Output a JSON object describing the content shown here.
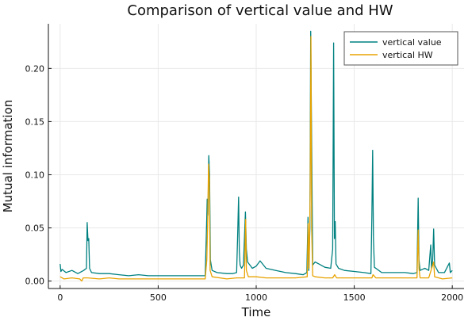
{
  "chart_data": {
    "type": "line",
    "title": "Comparison of vertical value and HW",
    "xlabel": "Time",
    "ylabel": "Mutual information",
    "xlim": [
      -60,
      2060
    ],
    "ylim": [
      -0.007,
      0.242
    ],
    "x_ticks": [
      0,
      500,
      1000,
      1500,
      2000
    ],
    "x_tick_labels": [
      "0",
      "500",
      "1000",
      "1500",
      "2000"
    ],
    "y_ticks": [
      0.0,
      0.05,
      0.1,
      0.15,
      0.2
    ],
    "y_tick_labels": [
      "0.00",
      "0.05",
      "0.10",
      "0.15",
      "0.20"
    ],
    "grid": true,
    "legend_position": "top-right",
    "series": [
      {
        "name": "vertical value",
        "color": "#008080",
        "points": [
          [
            0,
            0.016
          ],
          [
            4,
            0.009
          ],
          [
            10,
            0.011
          ],
          [
            30,
            0.008
          ],
          [
            60,
            0.01
          ],
          [
            90,
            0.007
          ],
          [
            120,
            0.01
          ],
          [
            134,
            0.012
          ],
          [
            138,
            0.055
          ],
          [
            142,
            0.038
          ],
          [
            146,
            0.04
          ],
          [
            150,
            0.012
          ],
          [
            160,
            0.008
          ],
          [
            200,
            0.007
          ],
          [
            250,
            0.007
          ],
          [
            300,
            0.006
          ],
          [
            350,
            0.005
          ],
          [
            400,
            0.006
          ],
          [
            450,
            0.005
          ],
          [
            500,
            0.005
          ],
          [
            550,
            0.005
          ],
          [
            600,
            0.005
          ],
          [
            650,
            0.005
          ],
          [
            700,
            0.005
          ],
          [
            740,
            0.005
          ],
          [
            748,
            0.06
          ],
          [
            750,
            0.077
          ],
          [
            754,
            0.062
          ],
          [
            758,
            0.118
          ],
          [
            762,
            0.1
          ],
          [
            766,
            0.02
          ],
          [
            775,
            0.01
          ],
          [
            800,
            0.008
          ],
          [
            850,
            0.007
          ],
          [
            880,
            0.007
          ],
          [
            900,
            0.008
          ],
          [
            905,
            0.04
          ],
          [
            910,
            0.079
          ],
          [
            914,
            0.028
          ],
          [
            918,
            0.015
          ],
          [
            925,
            0.012
          ],
          [
            935,
            0.015
          ],
          [
            945,
            0.065
          ],
          [
            950,
            0.03
          ],
          [
            956,
            0.018
          ],
          [
            980,
            0.012
          ],
          [
            1000,
            0.014
          ],
          [
            1020,
            0.019
          ],
          [
            1050,
            0.012
          ],
          [
            1100,
            0.01
          ],
          [
            1150,
            0.008
          ],
          [
            1200,
            0.007
          ],
          [
            1240,
            0.006
          ],
          [
            1258,
            0.008
          ],
          [
            1264,
            0.06
          ],
          [
            1268,
            0.01
          ],
          [
            1274,
            0.05
          ],
          [
            1278,
            0.235
          ],
          [
            1283,
            0.13
          ],
          [
            1288,
            0.015
          ],
          [
            1300,
            0.018
          ],
          [
            1320,
            0.016
          ],
          [
            1350,
            0.013
          ],
          [
            1380,
            0.012
          ],
          [
            1390,
            0.03
          ],
          [
            1395,
            0.224
          ],
          [
            1399,
            0.04
          ],
          [
            1403,
            0.056
          ],
          [
            1407,
            0.016
          ],
          [
            1420,
            0.012
          ],
          [
            1450,
            0.01
          ],
          [
            1500,
            0.009
          ],
          [
            1550,
            0.008
          ],
          [
            1585,
            0.007
          ],
          [
            1590,
            0.06
          ],
          [
            1594,
            0.123
          ],
          [
            1598,
            0.04
          ],
          [
            1603,
            0.013
          ],
          [
            1640,
            0.008
          ],
          [
            1700,
            0.008
          ],
          [
            1760,
            0.008
          ],
          [
            1800,
            0.007
          ],
          [
            1820,
            0.008
          ],
          [
            1826,
            0.078
          ],
          [
            1830,
            0.02
          ],
          [
            1836,
            0.01
          ],
          [
            1860,
            0.012
          ],
          [
            1880,
            0.01
          ],
          [
            1890,
            0.034
          ],
          [
            1894,
            0.012
          ],
          [
            1900,
            0.02
          ],
          [
            1905,
            0.049
          ],
          [
            1910,
            0.015
          ],
          [
            1930,
            0.008
          ],
          [
            1960,
            0.008
          ],
          [
            1985,
            0.017
          ],
          [
            1990,
            0.008
          ],
          [
            2000,
            0.01
          ]
        ]
      },
      {
        "name": "vertical HW",
        "color": "#E8A300",
        "points": [
          [
            0,
            0.004
          ],
          [
            20,
            0.002
          ],
          [
            60,
            0.003
          ],
          [
            100,
            0.002
          ],
          [
            110,
            0.0
          ],
          [
            118,
            0.003
          ],
          [
            140,
            0.003
          ],
          [
            200,
            0.002
          ],
          [
            250,
            0.003
          ],
          [
            300,
            0.002
          ],
          [
            350,
            0.002
          ],
          [
            400,
            0.002
          ],
          [
            450,
            0.002
          ],
          [
            500,
            0.002
          ],
          [
            550,
            0.002
          ],
          [
            600,
            0.002
          ],
          [
            650,
            0.002
          ],
          [
            700,
            0.002
          ],
          [
            740,
            0.002
          ],
          [
            748,
            0.02
          ],
          [
            753,
            0.06
          ],
          [
            757,
            0.11
          ],
          [
            761,
            0.095
          ],
          [
            765,
            0.01
          ],
          [
            775,
            0.004
          ],
          [
            850,
            0.002
          ],
          [
            900,
            0.003
          ],
          [
            940,
            0.003
          ],
          [
            946,
            0.058
          ],
          [
            950,
            0.01
          ],
          [
            960,
            0.004
          ],
          [
            1000,
            0.004
          ],
          [
            1050,
            0.003
          ],
          [
            1100,
            0.003
          ],
          [
            1200,
            0.003
          ],
          [
            1260,
            0.004
          ],
          [
            1265,
            0.054
          ],
          [
            1270,
            0.012
          ],
          [
            1275,
            0.08
          ],
          [
            1279,
            0.23
          ],
          [
            1283,
            0.05
          ],
          [
            1288,
            0.005
          ],
          [
            1300,
            0.004
          ],
          [
            1350,
            0.003
          ],
          [
            1390,
            0.003
          ],
          [
            1400,
            0.006
          ],
          [
            1410,
            0.003
          ],
          [
            1500,
            0.003
          ],
          [
            1590,
            0.003
          ],
          [
            1596,
            0.006
          ],
          [
            1610,
            0.003
          ],
          [
            1700,
            0.003
          ],
          [
            1780,
            0.003
          ],
          [
            1820,
            0.003
          ],
          [
            1826,
            0.048
          ],
          [
            1830,
            0.012
          ],
          [
            1836,
            0.003
          ],
          [
            1880,
            0.003
          ],
          [
            1905,
            0.018
          ],
          [
            1910,
            0.004
          ],
          [
            1950,
            0.002
          ],
          [
            2000,
            0.003
          ]
        ]
      }
    ]
  }
}
